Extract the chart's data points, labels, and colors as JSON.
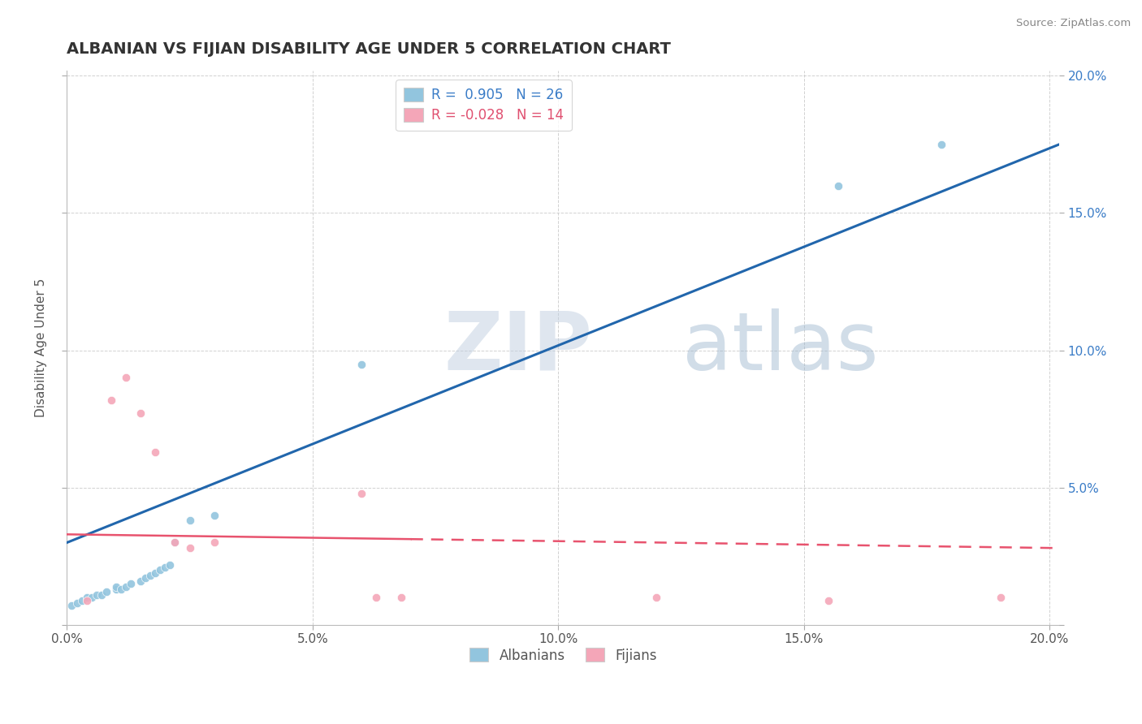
{
  "title": "ALBANIAN VS FIJIAN DISABILITY AGE UNDER 5 CORRELATION CHART",
  "source": "Source: ZipAtlas.com",
  "ylabel": "Disability Age Under 5",
  "watermark": "ZIPatlas",
  "xlim": [
    0.0,
    0.202
  ],
  "ylim": [
    0.0,
    0.202
  ],
  "albanian_R": 0.905,
  "albanian_N": 26,
  "fijian_R": -0.028,
  "fijian_N": 14,
  "albanian_color": "#92c5de",
  "fijian_color": "#f4a6b8",
  "albanian_line_color": "#2166ac",
  "fijian_line_color": "#e8536e",
  "legend_label_albanians": "Albanians",
  "legend_label_fijians": "Fijians",
  "albanian_scatter_x": [
    0.001,
    0.002,
    0.003,
    0.004,
    0.005,
    0.006,
    0.007,
    0.008,
    0.01,
    0.01,
    0.011,
    0.012,
    0.013,
    0.015,
    0.016,
    0.017,
    0.018,
    0.019,
    0.02,
    0.021,
    0.022,
    0.025,
    0.03,
    0.06,
    0.157,
    0.178
  ],
  "albanian_scatter_y": [
    0.007,
    0.008,
    0.009,
    0.01,
    0.01,
    0.011,
    0.011,
    0.012,
    0.013,
    0.014,
    0.013,
    0.014,
    0.015,
    0.016,
    0.017,
    0.018,
    0.019,
    0.02,
    0.021,
    0.022,
    0.03,
    0.038,
    0.04,
    0.095,
    0.16,
    0.175
  ],
  "fijian_scatter_x": [
    0.004,
    0.009,
    0.012,
    0.015,
    0.018,
    0.022,
    0.025,
    0.03,
    0.06,
    0.063,
    0.068,
    0.12,
    0.155,
    0.19
  ],
  "fijian_scatter_y": [
    0.009,
    0.082,
    0.09,
    0.077,
    0.063,
    0.03,
    0.028,
    0.03,
    0.048,
    0.01,
    0.01,
    0.01,
    0.009,
    0.01
  ],
  "fijian_line_y_at_0": 0.033,
  "fijian_line_y_at_20": 0.028,
  "albanian_line_y_at_0": 0.03,
  "albanian_line_y_at_20": 0.175
}
